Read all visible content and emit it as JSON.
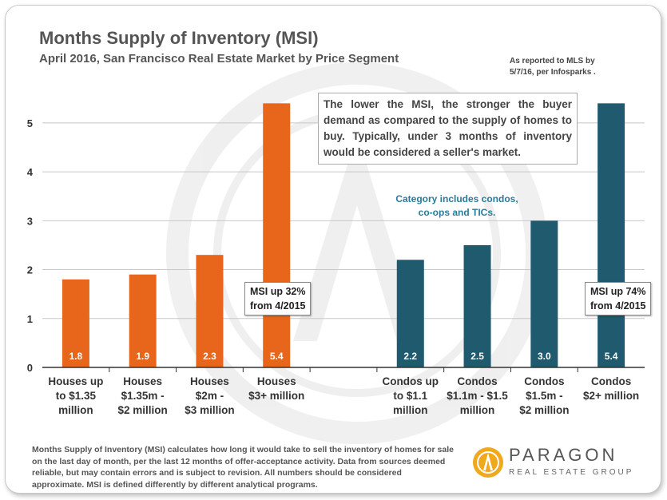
{
  "header": {
    "title": "Months Supply of Inventory (MSI)",
    "subtitle": "April 2016, San Francisco Real Estate Market by Price Segment",
    "as_of_line1": "As reported to MLS by",
    "as_of_line2": "5/7/16, per Infosparks ."
  },
  "callout": {
    "text": "The lower the MSI, the stronger the buyer demand as compared to the supply of homes to buy. Typically, under 3 months of inventory would be considered a seller's market."
  },
  "note": {
    "line1": "Category includes condos,",
    "line2": "co-ops and TICs."
  },
  "annotations": {
    "houses_line1": "MSI up 32%",
    "houses_line2": "from 4/2015",
    "condos_line1": "MSI up 74%",
    "condos_line2": "from 4/2015"
  },
  "footer": {
    "text": "Months Supply of Inventory (MSI) calculates how long it would take to sell the inventory of homes for sale on the last day of month, per the last 12 months of offer-acceptance activity. Data from sources deemed reliable, but may contain errors and is subject to revision. All numbers should be considered approximate. MSI is defined differently by different analytical programs."
  },
  "logo": {
    "name": "PARAGON",
    "tagline": "REAL ESTATE GROUP"
  },
  "chart_data": {
    "type": "bar",
    "title": "Months Supply of Inventory (MSI)",
    "ylim": [
      0,
      5.7
    ],
    "yticks": [
      0,
      1,
      2,
      3,
      4,
      5
    ],
    "grid": true,
    "categories": [
      [
        "Houses up",
        "to $1.35",
        "million"
      ],
      [
        "Houses",
        "$1.35m -",
        "$2 million"
      ],
      [
        "Houses",
        "$2m -",
        "$3 million"
      ],
      [
        "Houses",
        "$3+ million"
      ],
      [],
      [
        "Condos up",
        "to $1.1",
        "million"
      ],
      [
        "Condos",
        "$1.1m - $1.5",
        "million"
      ],
      [
        "Condos",
        "$1.5m -",
        "$2 million"
      ],
      [
        "Condos",
        "$2+ million"
      ]
    ],
    "values": [
      1.8,
      1.9,
      2.3,
      5.4,
      null,
      2.2,
      2.5,
      3.0,
      5.4
    ],
    "labels": [
      "1.8",
      "1.9",
      "2.3",
      "5.4",
      "",
      "2.2",
      "2.5",
      "3.0",
      "5.4"
    ],
    "groups": [
      "houses",
      "houses",
      "houses",
      "houses",
      "gap",
      "condos",
      "condos",
      "condos",
      "condos"
    ],
    "colors": {
      "houses": "#e8661c",
      "condos": "#1f5a6e",
      "grid": "#c8c8c8",
      "axis": "#333333"
    }
  }
}
